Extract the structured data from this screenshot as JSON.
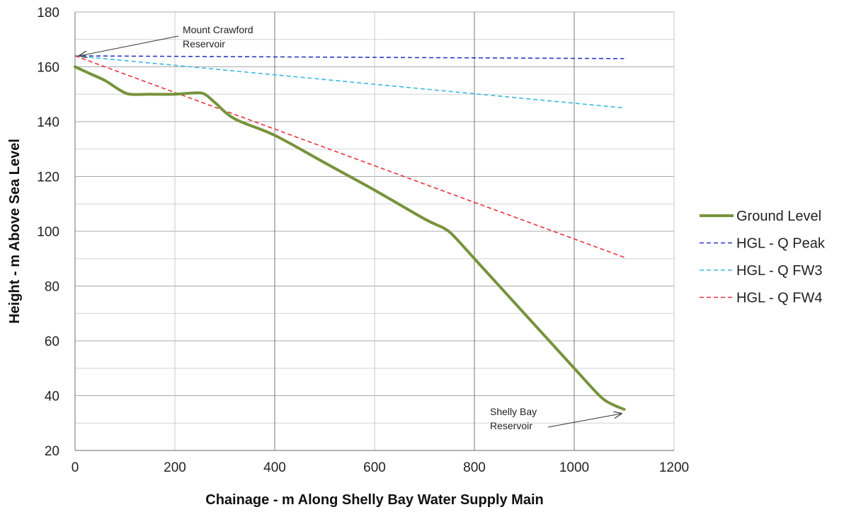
{
  "chart_data": {
    "type": "line",
    "title": "",
    "xlabel": "Chainage - m Along Shelly Bay Water Supply Main",
    "ylabel": "Height - m Above Sea Level",
    "xlim": [
      0,
      1200
    ],
    "ylim": [
      20,
      180
    ],
    "x_ticks": [
      0,
      200,
      400,
      600,
      800,
      1000,
      1200
    ],
    "y_ticks": [
      20,
      40,
      60,
      80,
      100,
      120,
      140,
      160,
      180
    ],
    "x_major_grid": [
      400,
      800,
      1000
    ],
    "grid": true,
    "legend_position": "right",
    "series": [
      {
        "name": "Ground Level",
        "color": "#77933c",
        "style": "solid",
        "x": [
          0,
          30,
          60,
          90,
          110,
          150,
          200,
          240,
          260,
          280,
          320,
          400,
          500,
          600,
          700,
          740,
          760,
          800,
          900,
          1000,
          1040,
          1060,
          1080,
          1100
        ],
        "y": [
          160,
          157.5,
          155,
          151.5,
          150,
          150,
          150,
          150.5,
          150,
          147,
          141,
          135,
          125,
          115,
          104.5,
          101,
          98,
          90,
          70,
          50,
          42,
          38.5,
          36.5,
          35
        ]
      },
      {
        "name": "HGL - Q Peak",
        "color": "#2a3ac8",
        "style": "dashed",
        "x": [
          0,
          1100
        ],
        "y": [
          164,
          163
        ]
      },
      {
        "name": "HGL - Q FW3",
        "color": "#3ab8e0",
        "style": "dashed",
        "x": [
          0,
          1100
        ],
        "y": [
          164,
          145
        ]
      },
      {
        "name": "HGL - Q FW4",
        "color": "#e8323c",
        "style": "dashed",
        "x": [
          0,
          1100
        ],
        "y": [
          164,
          90.5
        ]
      }
    ],
    "annotations": [
      {
        "lines": [
          "Mount Crawford",
          "Reservoir"
        ],
        "arrow_to": [
          0,
          164
        ]
      },
      {
        "lines": [
          "Shelly Bay",
          "Reservoir"
        ],
        "arrow_to": [
          1100,
          35
        ]
      }
    ]
  }
}
